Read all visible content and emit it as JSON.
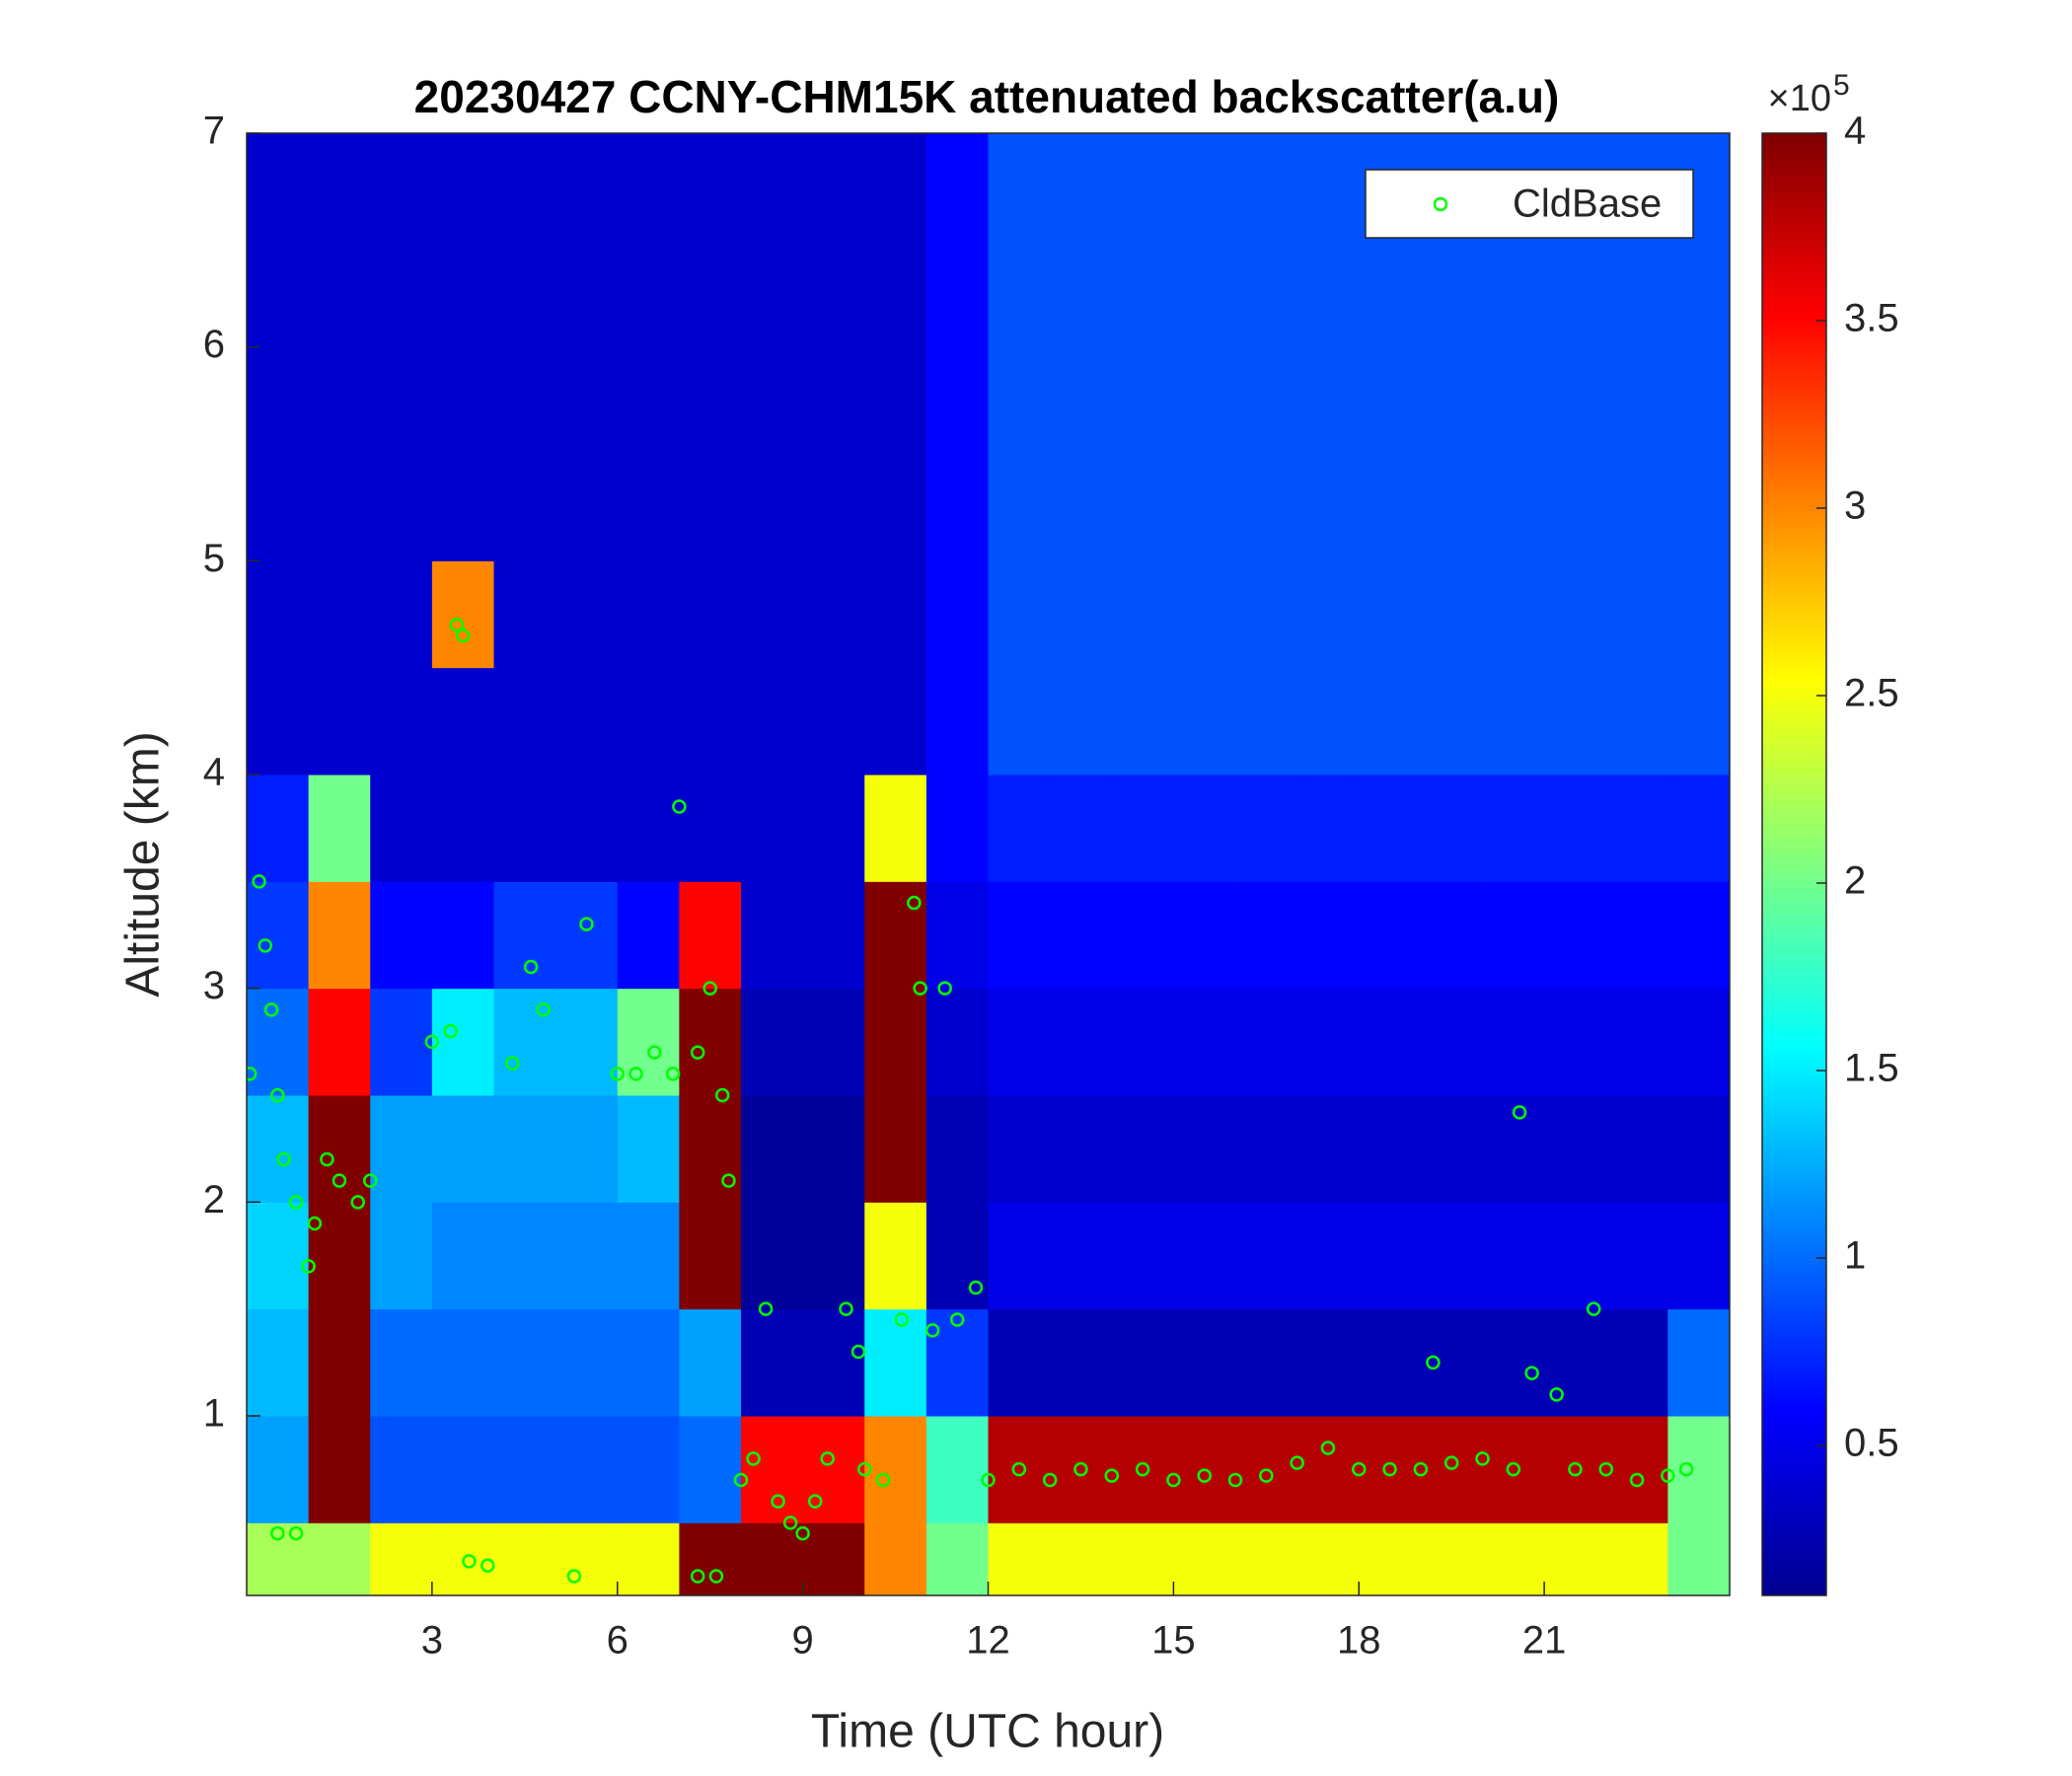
{
  "chart_data": {
    "type": "heatmap",
    "title": "20230427 CCNY-CHM15K attenuated backscatter(a.u)",
    "x_label": "Time (UTC hour)",
    "y_label": "Altitude (km)",
    "xlim": [
      0,
      24
    ],
    "xticks": [
      3,
      6,
      9,
      12,
      15,
      18,
      21
    ],
    "ylim": [
      0.16,
      7
    ],
    "yticks": [
      1,
      2,
      3,
      4,
      5,
      6,
      7
    ],
    "x_edges": [
      0,
      1,
      2,
      3,
      4,
      5,
      6,
      7,
      8,
      9,
      10,
      11,
      12,
      13,
      14,
      15,
      16,
      17,
      18,
      19,
      20,
      21,
      22,
      23,
      24
    ],
    "y_edges": [
      0.16,
      0.5,
      1,
      1.5,
      2,
      2.5,
      3,
      3.5,
      4,
      4.5,
      5,
      5.5,
      6,
      6.5,
      7
    ],
    "z": [
      [
        2.2,
        2.2,
        2.5,
        2.5,
        2.5,
        2.5,
        2.5,
        4,
        4,
        4,
        3,
        2,
        2.5,
        2.5,
        2.5,
        2.5,
        2.5,
        2.5,
        2.5,
        2.5,
        2.5,
        2.5,
        2.5,
        2
      ],
      [
        1.2,
        4,
        0.9,
        0.9,
        0.9,
        0.9,
        0.9,
        1,
        3.5,
        3.5,
        3,
        1.8,
        3.8,
        3.8,
        3.8,
        3.8,
        3.8,
        3.8,
        3.8,
        3.8,
        3.8,
        3.8,
        3.8,
        2
      ],
      [
        1.3,
        4,
        1,
        1,
        1,
        1,
        1,
        1.2,
        0.3,
        0.3,
        1.5,
        0.8,
        0.3,
        0.3,
        0.3,
        0.3,
        0.3,
        0.3,
        0.3,
        0.3,
        0.3,
        0.3,
        0.3,
        1
      ],
      [
        1.4,
        4,
        1.2,
        1.1,
        1.1,
        1.1,
        1.1,
        4,
        0.2,
        0.2,
        2.5,
        0.3,
        0.5,
        0.5,
        0.5,
        0.5,
        0.5,
        0.5,
        0.5,
        0.5,
        0.5,
        0.5,
        0.5,
        0.5
      ],
      [
        1.3,
        4,
        1.2,
        1.2,
        1.2,
        1.2,
        1.3,
        4,
        0.2,
        0.2,
        4,
        0.3,
        0.4,
        0.4,
        0.4,
        0.4,
        0.4,
        0.4,
        0.4,
        0.4,
        0.4,
        0.4,
        0.4,
        0.4
      ],
      [
        1,
        3.5,
        0.8,
        1.5,
        1.3,
        1.3,
        2,
        4,
        0.3,
        0.3,
        4,
        0.4,
        0.5,
        0.5,
        0.5,
        0.5,
        0.5,
        0.5,
        0.5,
        0.5,
        0.5,
        0.5,
        0.5,
        0.5
      ],
      [
        0.8,
        3,
        0.6,
        0.6,
        0.8,
        0.8,
        0.6,
        3.5,
        0.4,
        0.4,
        4,
        0.5,
        0.6,
        0.6,
        0.6,
        0.6,
        0.6,
        0.6,
        0.6,
        0.6,
        0.6,
        0.6,
        0.6,
        0.6
      ],
      [
        0.7,
        2,
        0.4,
        0.4,
        0.4,
        0.4,
        0.4,
        0.4,
        0.4,
        0.4,
        2.5,
        0.6,
        0.7,
        0.7,
        0.7,
        0.7,
        0.7,
        0.7,
        0.7,
        0.7,
        0.7,
        0.7,
        0.7,
        0.7
      ],
      [
        0.4,
        0.4,
        0.4,
        0.4,
        0.4,
        0.4,
        0.4,
        0.4,
        0.4,
        0.4,
        0.4,
        0.6,
        0.9,
        0.9,
        0.9,
        0.9,
        0.9,
        0.9,
        0.9,
        0.9,
        0.9,
        0.9,
        0.9,
        0.9
      ],
      [
        0.4,
        0.4,
        0.4,
        3,
        0.4,
        0.4,
        0.4,
        0.4,
        0.4,
        0.4,
        0.4,
        0.6,
        0.9,
        0.9,
        0.9,
        0.9,
        0.9,
        0.9,
        0.9,
        0.9,
        0.9,
        0.9,
        0.9,
        0.9
      ],
      [
        0.4,
        0.4,
        0.4,
        0.4,
        0.4,
        0.4,
        0.4,
        0.4,
        0.4,
        0.4,
        0.4,
        0.6,
        0.9,
        0.9,
        0.9,
        0.9,
        0.9,
        0.9,
        0.9,
        0.9,
        0.9,
        0.9,
        0.9,
        0.9
      ],
      [
        0.4,
        0.4,
        0.4,
        0.4,
        0.4,
        0.4,
        0.4,
        0.4,
        0.4,
        0.4,
        0.4,
        0.6,
        0.9,
        0.9,
        0.9,
        0.9,
        0.9,
        0.9,
        0.9,
        0.9,
        0.9,
        0.9,
        0.9,
        0.9
      ],
      [
        0.4,
        0.4,
        0.4,
        0.4,
        0.4,
        0.4,
        0.4,
        0.4,
        0.4,
        0.4,
        0.4,
        0.6,
        0.9,
        0.9,
        0.9,
        0.9,
        0.9,
        0.9,
        0.9,
        0.9,
        0.9,
        0.9,
        0.9,
        0.9
      ],
      [
        0.4,
        0.4,
        0.4,
        0.4,
        0.4,
        0.4,
        0.4,
        0.4,
        0.4,
        0.4,
        0.4,
        0.6,
        0.9,
        0.9,
        0.9,
        0.9,
        0.9,
        0.9,
        0.9,
        0.9,
        0.9,
        0.9,
        0.9,
        0.9
      ]
    ],
    "clim": [
      0.1,
      4
    ],
    "cticks": [
      0.5,
      1,
      1.5,
      2,
      2.5,
      3,
      3.5,
      4
    ],
    "colorbar_multiplier": "×10",
    "colorbar_exponent": "5",
    "colormap": "jet",
    "legend": "upper right",
    "series": [
      {
        "name": "CldBase",
        "color": "#00ff00",
        "x": [
          0.05,
          0.2,
          0.3,
          0.4,
          0.5,
          0.6,
          0.8,
          1.0,
          1.1,
          1.3,
          1.5,
          1.8,
          2.0,
          0.5,
          0.8,
          3.0,
          3.3,
          3.4,
          3.5,
          3.6,
          3.9,
          4.3,
          4.6,
          4.8,
          5.3,
          5.5,
          6.0,
          6.3,
          6.6,
          6.9,
          7.0,
          7.3,
          7.5,
          7.7,
          7.8,
          7.3,
          7.6,
          8.0,
          8.2,
          8.4,
          8.6,
          8.8,
          9.0,
          9.2,
          9.4,
          9.7,
          9.9,
          10.0,
          10.3,
          10.6,
          10.8,
          10.9,
          11.1,
          11.3,
          11.5,
          11.8,
          12.0,
          12.5,
          13.0,
          13.5,
          14.0,
          14.5,
          15.0,
          15.5,
          16.0,
          16.5,
          17.0,
          17.5,
          18.0,
          18.5,
          19.0,
          19.2,
          19.5,
          20.0,
          20.5,
          20.6,
          20.8,
          21.2,
          21.5,
          21.8,
          22.0,
          22.5,
          23.0,
          23.3
        ],
        "values": [
          2.6,
          3.5,
          3.2,
          2.9,
          2.5,
          2.2,
          2.0,
          1.7,
          1.9,
          2.2,
          2.1,
          2.0,
          2.1,
          0.45,
          0.45,
          2.75,
          2.8,
          4.7,
          4.65,
          0.32,
          0.3,
          2.65,
          3.1,
          2.9,
          0.25,
          3.3,
          2.6,
          2.6,
          2.7,
          2.6,
          3.85,
          2.7,
          3.0,
          2.5,
          2.1,
          0.25,
          0.25,
          0.7,
          0.8,
          1.5,
          0.6,
          0.5,
          0.45,
          0.6,
          0.8,
          1.5,
          1.3,
          0.75,
          0.7,
          1.45,
          3.4,
          3.0,
          1.4,
          3.0,
          1.45,
          1.6,
          0.7,
          0.75,
          0.7,
          0.75,
          0.72,
          0.75,
          0.7,
          0.72,
          0.7,
          0.72,
          0.78,
          0.85,
          0.75,
          0.75,
          0.75,
          1.25,
          0.78,
          0.8,
          0.75,
          2.42,
          1.2,
          1.1,
          0.75,
          1.5,
          0.75,
          0.7,
          0.72,
          0.75
        ]
      }
    ]
  }
}
